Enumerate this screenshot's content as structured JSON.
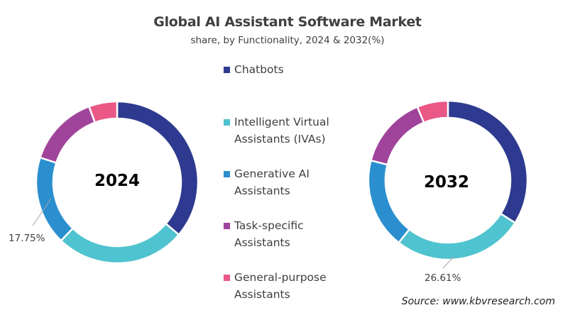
{
  "chart_data": [
    {
      "type": "pie",
      "donut": true,
      "title": "Global AI Assistant Software Market",
      "subtitle": "share, by Functionality, 2024 & 2032(%)",
      "center_label": "2024",
      "categories": [
        "Chatbots",
        "Intelligent Virtual Assistants (IVAs)",
        "Generative AI Assistants",
        "Task-specific Assistants",
        "General-purpose Assistants"
      ],
      "values": [
        36.2,
        26.0,
        17.75,
        14.4,
        5.65
      ],
      "data_labels": [
        {
          "category": "Generative AI Assistants",
          "text": "17.75%"
        }
      ]
    },
    {
      "type": "pie",
      "donut": true,
      "center_label": "2032",
      "categories": [
        "Chatbots",
        "Intelligent Virtual Assistants (IVAs)",
        "Generative AI Assistants",
        "Task-specific Assistants",
        "General-purpose Assistants"
      ],
      "values": [
        34.0,
        26.61,
        18.4,
        14.7,
        6.29
      ],
      "data_labels": [
        {
          "category": "Intelligent Virtual Assistants (IVAs)",
          "text": "26.61%"
        }
      ]
    }
  ],
  "title": "Global AI Assistant Software Market",
  "subtitle": "share, by Functionality, 2024 & 2032(%)",
  "legend": {
    "position": "center",
    "items": [
      {
        "label": "Chatbots",
        "color": "#2e3a8f"
      },
      {
        "label": "Intelligent Virtual\nAssistants (IVAs)",
        "color": "#4fc3cf"
      },
      {
        "label": "Generative AI\nAssistants",
        "color": "#2b8fcf"
      },
      {
        "label": "Task-specific\nAssistants",
        "color": "#a0449b"
      },
      {
        "label": "General-purpose\nAssistants",
        "color": "#ea5887"
      }
    ]
  },
  "labels": {
    "l2024": "17.75%",
    "l2032": "26.61%"
  },
  "source": "Source: www.kbvresearch.com"
}
